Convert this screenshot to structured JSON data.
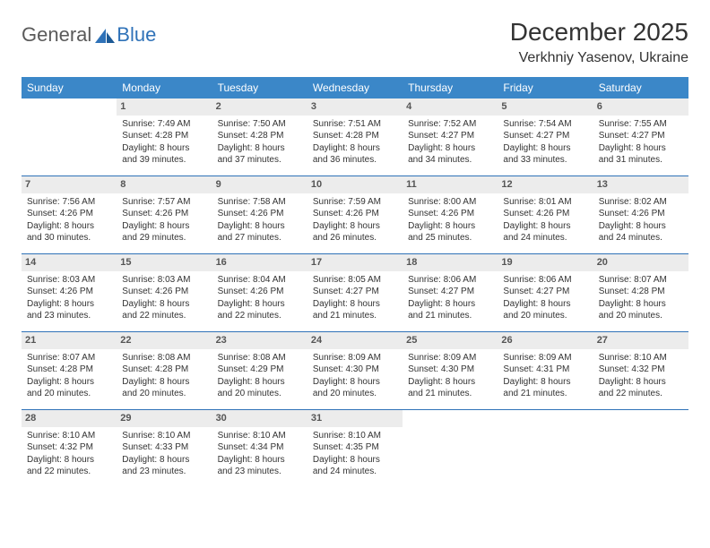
{
  "logo": {
    "text1": "General",
    "text2": "Blue"
  },
  "title": "December 2025",
  "location": "Verkhniy Yasenov, Ukraine",
  "colors": {
    "header_bg": "#3b87c8",
    "header_text": "#ffffff",
    "daynum_bg": "#ececec",
    "rule": "#2f72b8",
    "logo_gray": "#5a5a5a",
    "logo_blue": "#2f72b8"
  },
  "dayHeaders": [
    "Sunday",
    "Monday",
    "Tuesday",
    "Wednesday",
    "Thursday",
    "Friday",
    "Saturday"
  ],
  "weeks": [
    [
      {
        "n": "",
        "rise": "",
        "set": "",
        "dl1": "",
        "dl2": ""
      },
      {
        "n": "1",
        "rise": "Sunrise: 7:49 AM",
        "set": "Sunset: 4:28 PM",
        "dl1": "Daylight: 8 hours",
        "dl2": "and 39 minutes."
      },
      {
        "n": "2",
        "rise": "Sunrise: 7:50 AM",
        "set": "Sunset: 4:28 PM",
        "dl1": "Daylight: 8 hours",
        "dl2": "and 37 minutes."
      },
      {
        "n": "3",
        "rise": "Sunrise: 7:51 AM",
        "set": "Sunset: 4:28 PM",
        "dl1": "Daylight: 8 hours",
        "dl2": "and 36 minutes."
      },
      {
        "n": "4",
        "rise": "Sunrise: 7:52 AM",
        "set": "Sunset: 4:27 PM",
        "dl1": "Daylight: 8 hours",
        "dl2": "and 34 minutes."
      },
      {
        "n": "5",
        "rise": "Sunrise: 7:54 AM",
        "set": "Sunset: 4:27 PM",
        "dl1": "Daylight: 8 hours",
        "dl2": "and 33 minutes."
      },
      {
        "n": "6",
        "rise": "Sunrise: 7:55 AM",
        "set": "Sunset: 4:27 PM",
        "dl1": "Daylight: 8 hours",
        "dl2": "and 31 minutes."
      }
    ],
    [
      {
        "n": "7",
        "rise": "Sunrise: 7:56 AM",
        "set": "Sunset: 4:26 PM",
        "dl1": "Daylight: 8 hours",
        "dl2": "and 30 minutes."
      },
      {
        "n": "8",
        "rise": "Sunrise: 7:57 AM",
        "set": "Sunset: 4:26 PM",
        "dl1": "Daylight: 8 hours",
        "dl2": "and 29 minutes."
      },
      {
        "n": "9",
        "rise": "Sunrise: 7:58 AM",
        "set": "Sunset: 4:26 PM",
        "dl1": "Daylight: 8 hours",
        "dl2": "and 27 minutes."
      },
      {
        "n": "10",
        "rise": "Sunrise: 7:59 AM",
        "set": "Sunset: 4:26 PM",
        "dl1": "Daylight: 8 hours",
        "dl2": "and 26 minutes."
      },
      {
        "n": "11",
        "rise": "Sunrise: 8:00 AM",
        "set": "Sunset: 4:26 PM",
        "dl1": "Daylight: 8 hours",
        "dl2": "and 25 minutes."
      },
      {
        "n": "12",
        "rise": "Sunrise: 8:01 AM",
        "set": "Sunset: 4:26 PM",
        "dl1": "Daylight: 8 hours",
        "dl2": "and 24 minutes."
      },
      {
        "n": "13",
        "rise": "Sunrise: 8:02 AM",
        "set": "Sunset: 4:26 PM",
        "dl1": "Daylight: 8 hours",
        "dl2": "and 24 minutes."
      }
    ],
    [
      {
        "n": "14",
        "rise": "Sunrise: 8:03 AM",
        "set": "Sunset: 4:26 PM",
        "dl1": "Daylight: 8 hours",
        "dl2": "and 23 minutes."
      },
      {
        "n": "15",
        "rise": "Sunrise: 8:03 AM",
        "set": "Sunset: 4:26 PM",
        "dl1": "Daylight: 8 hours",
        "dl2": "and 22 minutes."
      },
      {
        "n": "16",
        "rise": "Sunrise: 8:04 AM",
        "set": "Sunset: 4:26 PM",
        "dl1": "Daylight: 8 hours",
        "dl2": "and 22 minutes."
      },
      {
        "n": "17",
        "rise": "Sunrise: 8:05 AM",
        "set": "Sunset: 4:27 PM",
        "dl1": "Daylight: 8 hours",
        "dl2": "and 21 minutes."
      },
      {
        "n": "18",
        "rise": "Sunrise: 8:06 AM",
        "set": "Sunset: 4:27 PM",
        "dl1": "Daylight: 8 hours",
        "dl2": "and 21 minutes."
      },
      {
        "n": "19",
        "rise": "Sunrise: 8:06 AM",
        "set": "Sunset: 4:27 PM",
        "dl1": "Daylight: 8 hours",
        "dl2": "and 20 minutes."
      },
      {
        "n": "20",
        "rise": "Sunrise: 8:07 AM",
        "set": "Sunset: 4:28 PM",
        "dl1": "Daylight: 8 hours",
        "dl2": "and 20 minutes."
      }
    ],
    [
      {
        "n": "21",
        "rise": "Sunrise: 8:07 AM",
        "set": "Sunset: 4:28 PM",
        "dl1": "Daylight: 8 hours",
        "dl2": "and 20 minutes."
      },
      {
        "n": "22",
        "rise": "Sunrise: 8:08 AM",
        "set": "Sunset: 4:28 PM",
        "dl1": "Daylight: 8 hours",
        "dl2": "and 20 minutes."
      },
      {
        "n": "23",
        "rise": "Sunrise: 8:08 AM",
        "set": "Sunset: 4:29 PM",
        "dl1": "Daylight: 8 hours",
        "dl2": "and 20 minutes."
      },
      {
        "n": "24",
        "rise": "Sunrise: 8:09 AM",
        "set": "Sunset: 4:30 PM",
        "dl1": "Daylight: 8 hours",
        "dl2": "and 20 minutes."
      },
      {
        "n": "25",
        "rise": "Sunrise: 8:09 AM",
        "set": "Sunset: 4:30 PM",
        "dl1": "Daylight: 8 hours",
        "dl2": "and 21 minutes."
      },
      {
        "n": "26",
        "rise": "Sunrise: 8:09 AM",
        "set": "Sunset: 4:31 PM",
        "dl1": "Daylight: 8 hours",
        "dl2": "and 21 minutes."
      },
      {
        "n": "27",
        "rise": "Sunrise: 8:10 AM",
        "set": "Sunset: 4:32 PM",
        "dl1": "Daylight: 8 hours",
        "dl2": "and 22 minutes."
      }
    ],
    [
      {
        "n": "28",
        "rise": "Sunrise: 8:10 AM",
        "set": "Sunset: 4:32 PM",
        "dl1": "Daylight: 8 hours",
        "dl2": "and 22 minutes."
      },
      {
        "n": "29",
        "rise": "Sunrise: 8:10 AM",
        "set": "Sunset: 4:33 PM",
        "dl1": "Daylight: 8 hours",
        "dl2": "and 23 minutes."
      },
      {
        "n": "30",
        "rise": "Sunrise: 8:10 AM",
        "set": "Sunset: 4:34 PM",
        "dl1": "Daylight: 8 hours",
        "dl2": "and 23 minutes."
      },
      {
        "n": "31",
        "rise": "Sunrise: 8:10 AM",
        "set": "Sunset: 4:35 PM",
        "dl1": "Daylight: 8 hours",
        "dl2": "and 24 minutes."
      },
      {
        "n": "",
        "rise": "",
        "set": "",
        "dl1": "",
        "dl2": ""
      },
      {
        "n": "",
        "rise": "",
        "set": "",
        "dl1": "",
        "dl2": ""
      },
      {
        "n": "",
        "rise": "",
        "set": "",
        "dl1": "",
        "dl2": ""
      }
    ]
  ]
}
